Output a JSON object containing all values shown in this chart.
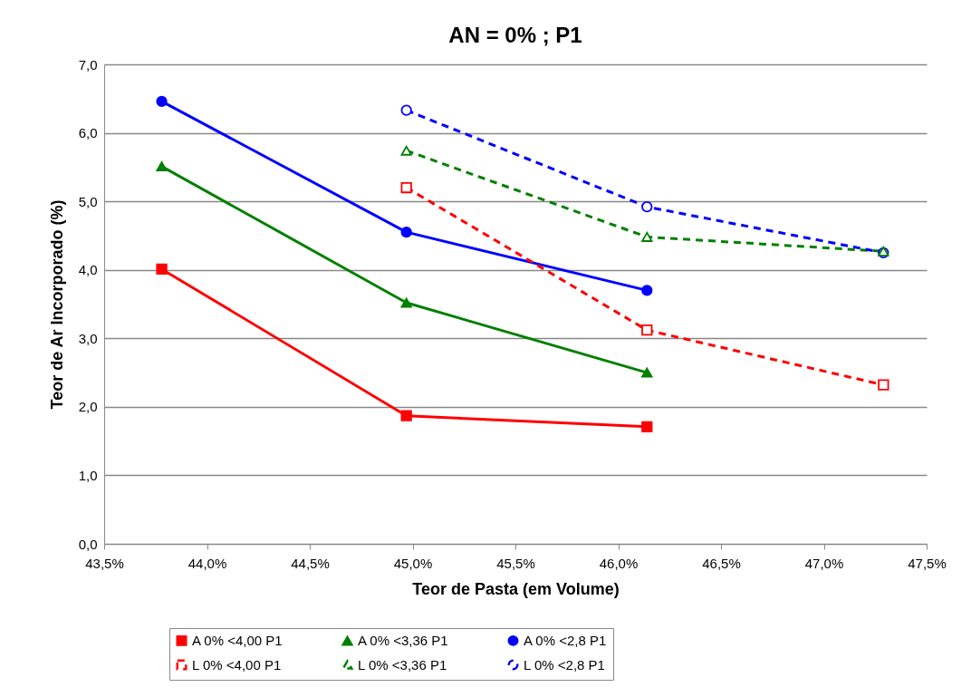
{
  "chart_data": {
    "type": "line",
    "title": "AN = 0% ; P1",
    "xlabel": "Teor de Pasta (em Volume)",
    "ylabel": "Teor de Ar Incorporado (%)",
    "xlim": [
      43.5,
      47.5
    ],
    "xticks": [
      {
        "value": 43.5,
        "label": "43,5%"
      },
      {
        "value": 44.0,
        "label": "44,0%"
      },
      {
        "value": 44.5,
        "label": "44,5%"
      },
      {
        "value": 45.0,
        "label": "45,0%"
      },
      {
        "value": 45.5,
        "label": "45,5%"
      },
      {
        "value": 46.0,
        "label": "46,0%"
      },
      {
        "value": 46.5,
        "label": "46,5%"
      },
      {
        "value": 47.0,
        "label": "47,0%"
      },
      {
        "value": 47.5,
        "label": "47,5%"
      }
    ],
    "ylim": [
      0,
      7
    ],
    "yticks": [
      {
        "value": 0,
        "label": "0,0"
      },
      {
        "value": 1,
        "label": "1,0"
      },
      {
        "value": 2,
        "label": "2,0"
      },
      {
        "value": 3,
        "label": "3,0"
      },
      {
        "value": 4,
        "label": "4,0"
      },
      {
        "value": 5,
        "label": "5,0"
      },
      {
        "value": 6,
        "label": "6,0"
      },
      {
        "value": 7,
        "label": "7,0"
      }
    ],
    "grid": "y",
    "legend": "bottom",
    "series": [
      {
        "name": "A 0% <4,00 P1",
        "color": "#ff0000",
        "marker": "square",
        "line_style": "solid",
        "x": [
          43.78,
          44.97,
          46.14
        ],
        "values": [
          4.01,
          1.87,
          1.71
        ]
      },
      {
        "name": "A 0% <3,36 P1",
        "color": "#008000",
        "marker": "triangle",
        "line_style": "solid",
        "x": [
          43.78,
          44.97,
          46.14
        ],
        "values": [
          5.51,
          3.52,
          2.5
        ]
      },
      {
        "name": "A 0% <2,8 P1",
        "color": "#0000ff",
        "marker": "circle",
        "line_style": "solid",
        "x": [
          43.78,
          44.97,
          46.14
        ],
        "values": [
          6.46,
          4.55,
          3.7
        ]
      },
      {
        "name": "L 0% <4,00 P1",
        "color": "#ff0000",
        "marker": "square",
        "line_style": "dashed",
        "x": [
          44.97,
          46.14,
          47.29
        ],
        "values": [
          5.2,
          3.12,
          2.32
        ]
      },
      {
        "name": "L 0% <3,36 P1",
        "color": "#008000",
        "marker": "triangle",
        "line_style": "dashed",
        "x": [
          44.97,
          46.14,
          47.29
        ],
        "values": [
          5.74,
          4.48,
          4.27
        ]
      },
      {
        "name": "L 0% <2,8 P1",
        "color": "#0000ff",
        "marker": "circle",
        "line_style": "dashed",
        "x": [
          44.97,
          46.14,
          47.29
        ],
        "values": [
          6.33,
          4.92,
          4.25
        ]
      }
    ]
  }
}
